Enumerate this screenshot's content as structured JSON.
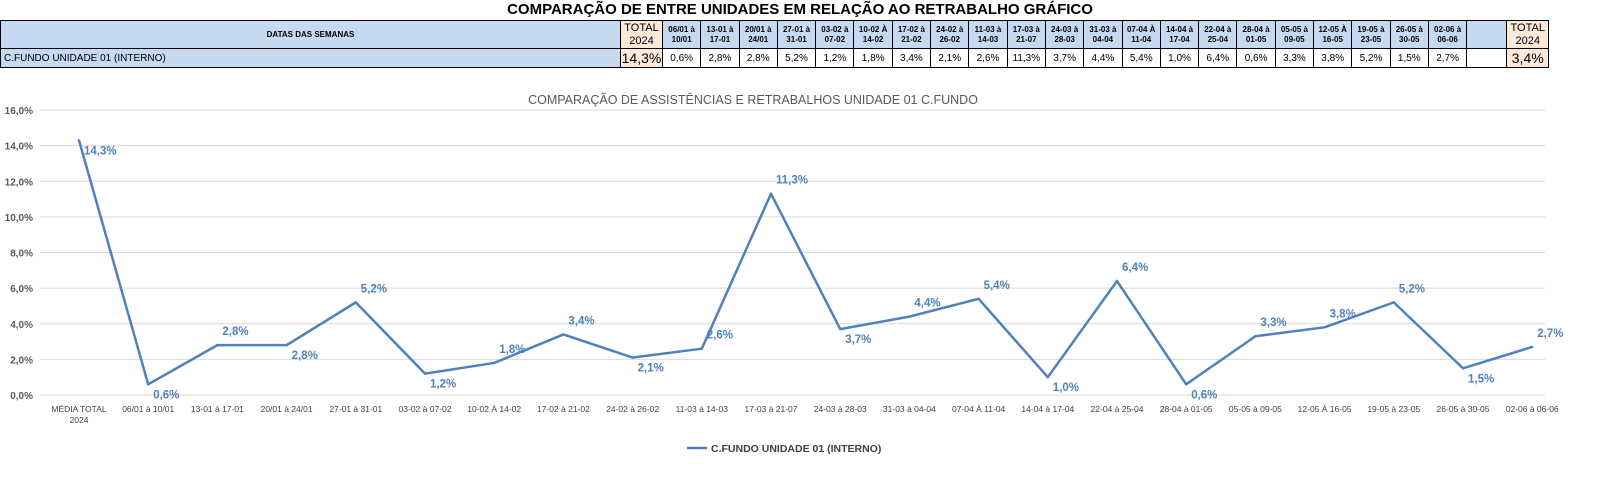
{
  "page_title": "COMPARAÇÃO DE ENTRE UNIDADES EM RELAÇÃO AO RETRABALHO GRÁFICO",
  "table": {
    "header_label": "DATAS DAS SEMANAS",
    "total_header": "TOTAL 2024",
    "weeks": [
      "06/01 à 10/01",
      "13-01 à 17-01",
      "20/01 à 24/01",
      "27-01 à 31-01",
      "03-02 à 07-02",
      "10-02 À 14-02",
      "17-02 à 21-02",
      "24-02 à 26-02",
      "11-03 à 14-03",
      "17-03 à 21-07",
      "24-03 à 28-03",
      "31-03 à 04-04",
      "07-04 À 11-04",
      "14-04 à 17-04",
      "22-04 à 25-04",
      "28-04 à 01-05",
      "05-05 à 09-05",
      "12-05 À 16-05",
      "19-05 à 23-05",
      "26-05 à 30-05",
      "02-06 à 06-06"
    ],
    "row_label": "C.FUNDO UNIDADE 01 (INTERNO)",
    "total_left": "14,3%",
    "week_values": [
      "0,6%",
      "2,8%",
      "2,8%",
      "5,2%",
      "1,2%",
      "1,8%",
      "3,4%",
      "2,1%",
      "2,6%",
      "11,3%",
      "3,7%",
      "4,4%",
      "5,4%",
      "1,0%",
      "6,4%",
      "0,6%",
      "3,3%",
      "3,8%",
      "5,2%",
      "1,5%",
      "2,7%"
    ],
    "total_right_header": "TOTAL 2024",
    "total_right": "3,4%"
  },
  "chart_data": {
    "type": "line",
    "title": "COMPARAÇÃO DE ASSISTÊNCIAS E RETRABALHOS UNIDADE 01 C.FUNDO",
    "categories": [
      "MÉDIA TOTAL 2024",
      "06/01 à 10/01",
      "13-01 à 17-01",
      "20/01 à 24/01",
      "27-01 à 31-01",
      "03-02 à 07-02",
      "10-02 À 14-02",
      "17-02 à 21-02",
      "24-02 à 26-02",
      "11-03 à 14-03",
      "17-03 à 21-07",
      "24-03 à 28-03",
      "31-03 à 04-04",
      "07-04 À 11-04",
      "14-04 à 17-04",
      "22-04 à 25-04",
      "28-04 à 01-05",
      "05-05 à 09-05",
      "12-05 À 16-05",
      "19-05 à 23-05",
      "26-05 à 30-05",
      "02-06 à 06-06"
    ],
    "series": [
      {
        "name": "C.FUNDO UNIDADE 01 (INTERNO)",
        "values": [
          14.3,
          0.6,
          2.8,
          2.8,
          5.2,
          1.2,
          1.8,
          3.4,
          2.1,
          2.6,
          11.3,
          3.7,
          4.4,
          5.4,
          1.0,
          6.4,
          0.6,
          3.3,
          3.8,
          5.2,
          1.5,
          2.7
        ],
        "labels": [
          "14,3%",
          "0,6%",
          "2,8%",
          "2,8%",
          "5,2%",
          "1,2%",
          "1,8%",
          "3,4%",
          "2,1%",
          "2,6%",
          "11,3%",
          "3,7%",
          "4,4%",
          "5,4%",
          "1,0%",
          "6,4%",
          "0,6%",
          "3,3%",
          "3,8%",
          "5,2%",
          "1,5%",
          "2,7%"
        ],
        "color": "#4f81bd"
      }
    ],
    "ylim": [
      0,
      16
    ],
    "yticks": [
      0,
      2,
      4,
      6,
      8,
      10,
      12,
      14,
      16
    ],
    "ytick_labels": [
      "0,0%",
      "2,0%",
      "4,0%",
      "6,0%",
      "8,0%",
      "10,0%",
      "12,0%",
      "14,0%",
      "16,0%"
    ],
    "grid": true,
    "legend": "bottom",
    "colors": {
      "line": "#4f81bd",
      "label": "#4f81bd",
      "header_fill": "#c5d9f1",
      "total_fill": "#fde9d9"
    }
  }
}
